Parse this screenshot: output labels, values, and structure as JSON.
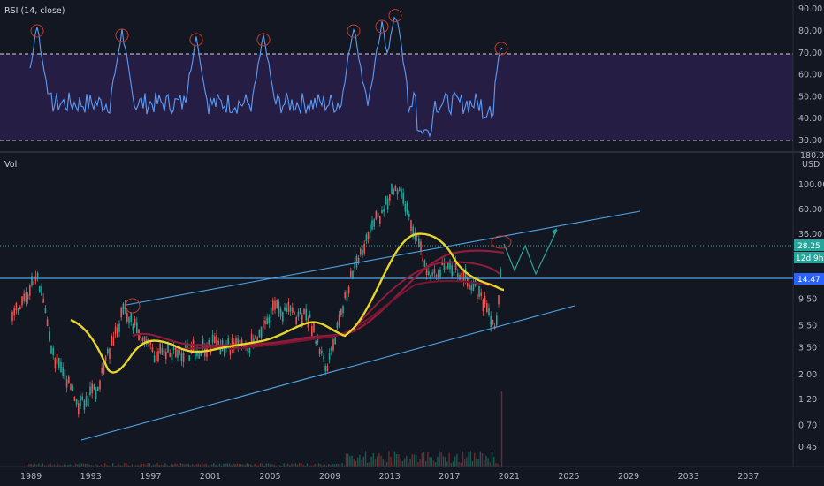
{
  "rsi_pane": {
    "label": "RSI (14, close)",
    "levels": [
      {
        "label": "90.00",
        "value": 90
      },
      {
        "label": "80.00",
        "value": 80
      },
      {
        "label": "70.00",
        "value": 70
      },
      {
        "label": "60.00",
        "value": 60
      },
      {
        "label": "50.00",
        "value": 50
      },
      {
        "label": "40.00",
        "value": 40
      },
      {
        "label": "30.00",
        "value": 30
      }
    ],
    "band": [
      30,
      70
    ],
    "line_color": "#5b9cf6",
    "band_color": "#2a1f4a"
  },
  "price_pane": {
    "vol_label": "Vol",
    "top_price": "180.00",
    "currency": "USD",
    "scale": "log",
    "price_levels": [
      {
        "label": "100.00",
        "value": 100
      },
      {
        "label": "60.00",
        "value": 60
      },
      {
        "label": "36.00",
        "value": 36
      },
      {
        "label": "9.50",
        "value": 9.5
      },
      {
        "label": "5.50",
        "value": 5.5
      },
      {
        "label": "3.50",
        "value": 3.5
      },
      {
        "label": "2.00",
        "value": 2
      },
      {
        "label": "1.20",
        "value": 1.2
      },
      {
        "label": "0.70",
        "value": 0.7
      },
      {
        "label": "0.45",
        "value": 0.45
      }
    ],
    "tags": [
      {
        "label": "28.25",
        "color": "#26a69a"
      },
      {
        "label": "12d 9h",
        "color": "#26a69a"
      },
      {
        "label": "14.47",
        "color": "#2962ff"
      }
    ]
  },
  "time_axis": {
    "labels": [
      "1989",
      "1993",
      "1997",
      "2001",
      "2005",
      "2009",
      "2013",
      "2017",
      "2021",
      "2025",
      "2029",
      "2033",
      "2037"
    ]
  },
  "colors": {
    "background": "#131722",
    "up": "#26a69a",
    "down": "#ef5350",
    "trendline": "#4da3e6",
    "ma_fast": "#e6d52a",
    "ma_slow": "#8e1c3a",
    "projection": "#26a69a"
  }
}
